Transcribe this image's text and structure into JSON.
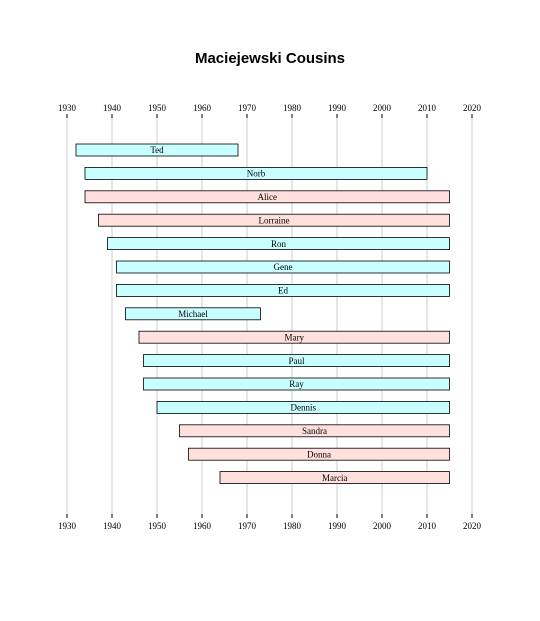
{
  "chart_data": {
    "type": "bar",
    "orientation": "horizontal-timeline",
    "title": "Maciejewski Cousins",
    "xlim": [
      1930,
      2020
    ],
    "xticks": [
      1930,
      1940,
      1950,
      1960,
      1970,
      1980,
      1990,
      2000,
      2010,
      2020
    ],
    "grid": true,
    "colors": {
      "male": "#c9ffff",
      "female": "#ffe0dc"
    },
    "series": [
      {
        "label": "Ted",
        "start": 1932,
        "end": 1968,
        "group": "male"
      },
      {
        "label": "Norb",
        "start": 1934,
        "end": 2010,
        "group": "male"
      },
      {
        "label": "Alice",
        "start": 1934,
        "end": 2015,
        "group": "female"
      },
      {
        "label": "Lorraine",
        "start": 1937,
        "end": 2015,
        "group": "female"
      },
      {
        "label": "Ron",
        "start": 1939,
        "end": 2015,
        "group": "male"
      },
      {
        "label": "Gene",
        "start": 1941,
        "end": 2015,
        "group": "male"
      },
      {
        "label": "Ed",
        "start": 1941,
        "end": 2015,
        "group": "male"
      },
      {
        "label": "Michael",
        "start": 1943,
        "end": 1973,
        "group": "male"
      },
      {
        "label": "Mary",
        "start": 1946,
        "end": 2015,
        "group": "female"
      },
      {
        "label": "Paul",
        "start": 1947,
        "end": 2015,
        "group": "male"
      },
      {
        "label": "Ray",
        "start": 1947,
        "end": 2015,
        "group": "male"
      },
      {
        "label": "Dennis",
        "start": 1950,
        "end": 2015,
        "group": "male"
      },
      {
        "label": "Sandra",
        "start": 1955,
        "end": 2015,
        "group": "female"
      },
      {
        "label": "Donna",
        "start": 1957,
        "end": 2015,
        "group": "female"
      },
      {
        "label": "Marcia",
        "start": 1964,
        "end": 2015,
        "group": "female"
      }
    ]
  }
}
